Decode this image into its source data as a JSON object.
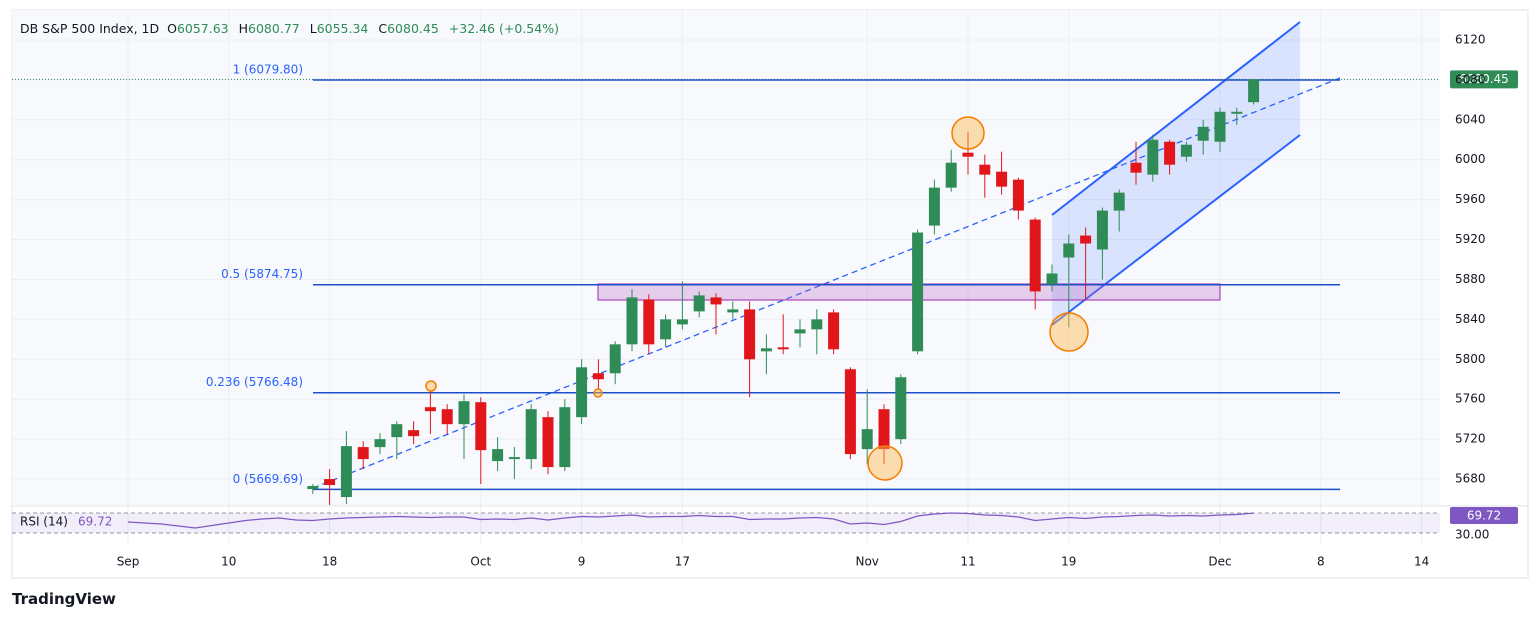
{
  "chart_data": {
    "type": "candlestick",
    "title": "DB S&P 500 Index, 1D",
    "ohlc_keys": [
      "O",
      "H",
      "L",
      "C"
    ],
    "change": "+32.46 (+0.54%)",
    "categories": [
      "Sep",
      null,
      null,
      null,
      null,
      null,
      "10",
      null,
      null,
      null,
      null,
      null,
      "18",
      null,
      null,
      null,
      null,
      null,
      null,
      null,
      null,
      "Oct",
      null,
      null,
      null,
      null,
      null,
      "9",
      null,
      null,
      null,
      null,
      null,
      "17",
      null,
      null,
      null,
      null,
      null,
      null,
      null,
      null,
      null,
      null,
      "Nov",
      null,
      null,
      null,
      null,
      null,
      "11",
      null,
      null,
      null,
      null,
      null,
      "19",
      null,
      null,
      null,
      null,
      null,
      null,
      null,
      null,
      "Dec",
      null,
      null,
      null,
      null,
      null,
      "8",
      null,
      null,
      null,
      null,
      null,
      "14"
    ],
    "open": [
      null,
      null,
      null,
      null,
      null,
      null,
      null,
      null,
      null,
      null,
      null,
      5670,
      5680,
      5662,
      5712,
      5712,
      5722,
      5729,
      5752,
      5750,
      5735,
      5757,
      5698,
      5700,
      5700,
      5742,
      5692,
      5742,
      5786,
      5786,
      5815,
      5860,
      5820,
      5835,
      5848,
      5862,
      5847,
      5850,
      5808,
      5812,
      5826,
      5830,
      5847,
      5790,
      5710,
      5750,
      5720,
      5808,
      5934,
      5972,
      6007,
      5995,
      5988,
      5980,
      5940,
      5875,
      5902,
      5924,
      5910,
      5949,
      5997,
      5985,
      6018,
      6003,
      6019,
      6018,
      6046,
      6057.63,
      null,
      null,
      null,
      null,
      null,
      null,
      null,
      null,
      null,
      null
    ],
    "high": [
      null,
      null,
      null,
      null,
      null,
      null,
      null,
      null,
      null,
      null,
      null,
      5675,
      5690,
      5728,
      5718,
      5726,
      5738,
      5738,
      5768,
      5755,
      5765,
      5762,
      5722,
      5712,
      5755,
      5748,
      5760,
      5800,
      5800,
      5818,
      5870,
      5865,
      5845,
      5878,
      5868,
      5866,
      5858,
      5858,
      5825,
      5845,
      5840,
      5850,
      5850,
      5792,
      5770,
      5755,
      5785,
      5930,
      5980,
      6010,
      6028,
      6005,
      6008,
      5982,
      5942,
      5895,
      5925,
      5932,
      5952,
      5970,
      6018,
      6025,
      6020,
      6018,
      6040,
      6052,
      6052,
      6080.77,
      null,
      null,
      null,
      null,
      null,
      null,
      null,
      null,
      null,
      null
    ],
    "low": [
      null,
      null,
      null,
      null,
      null,
      null,
      null,
      null,
      null,
      null,
      null,
      5665,
      5654,
      5655,
      5690,
      5705,
      5700,
      5715,
      5725,
      5725,
      5700,
      5675,
      5688,
      5680,
      5690,
      5685,
      5688,
      5735,
      5770,
      5775,
      5808,
      5805,
      5812,
      5830,
      5842,
      5825,
      5840,
      5762,
      5785,
      5805,
      5812,
      5805,
      5805,
      5700,
      5695,
      5695,
      5715,
      5805,
      5925,
      5968,
      5985,
      5962,
      5965,
      5940,
      5850,
      5868,
      5832,
      5860,
      5880,
      5928,
      5975,
      5978,
      5985,
      5998,
      6005,
      6008,
      6035,
      6055.34,
      null,
      null,
      null,
      null,
      null,
      null,
      null,
      null,
      null,
      null
    ],
    "close": [
      null,
      null,
      null,
      null,
      null,
      null,
      null,
      null,
      null,
      null,
      null,
      5673,
      5674,
      5713,
      5700,
      5720,
      5735,
      5723,
      5748,
      5735,
      5758,
      5709,
      5710,
      5702,
      5750,
      5692,
      5752,
      5792,
      5780,
      5815,
      5862,
      5815,
      5840,
      5840,
      5864,
      5855,
      5850,
      5800,
      5811,
      5810,
      5830,
      5840,
      5810,
      5705,
      5730,
      5710,
      5782,
      5927,
      5972,
      5997,
      6003,
      5985,
      5973,
      5949,
      5868,
      5886,
      5916,
      5916,
      5949,
      5967,
      5987,
      6020,
      5995,
      6015,
      6033,
      6048,
      6048,
      6080.45,
      null,
      null,
      null,
      null,
      null,
      null,
      null,
      null,
      null,
      null
    ],
    "up_color": "#2f8c57",
    "down_color": "#e0161b",
    "ylim": [
      5654,
      6150
    ],
    "yticks": [
      5680,
      5720,
      5760,
      5800,
      5840,
      5880,
      5920,
      5960,
      6000,
      6040,
      6080,
      6120
    ],
    "grid": true,
    "fib_levels": [
      {
        "value": 6079.8,
        "label": "1 (6079.80)"
      },
      {
        "value": 5874.75,
        "label": "0.5 (5874.75)"
      },
      {
        "value": 5766.48,
        "label": "0.236 (5766.48)"
      },
      {
        "value": 5669.69,
        "label": "0 (5669.69)"
      }
    ],
    "rsi": {
      "name": "RSI (14)",
      "color": "#7e57c2",
      "values": [
        52,
        50,
        48,
        44,
        40,
        45,
        50,
        55,
        58,
        60,
        56,
        55,
        58,
        60,
        61,
        62,
        63,
        62,
        61,
        62,
        62,
        57,
        58,
        57,
        60,
        56,
        60,
        63,
        62,
        64,
        66,
        62,
        63,
        63,
        65,
        63,
        63,
        57,
        58,
        58,
        60,
        61,
        58,
        48,
        50,
        47,
        53,
        64,
        68,
        70,
        69,
        66,
        65,
        62,
        55,
        58,
        61,
        59,
        62,
        63,
        65,
        66,
        64,
        65,
        64,
        66,
        67,
        69.72,
        null,
        null,
        null,
        null,
        null,
        null,
        null,
        null,
        null,
        null
      ],
      "ylim": [
        10,
        80
      ],
      "yticks": [
        {
          "value": 30,
          "label": "30.00"
        }
      ]
    }
  },
  "brand": "TradingView"
}
